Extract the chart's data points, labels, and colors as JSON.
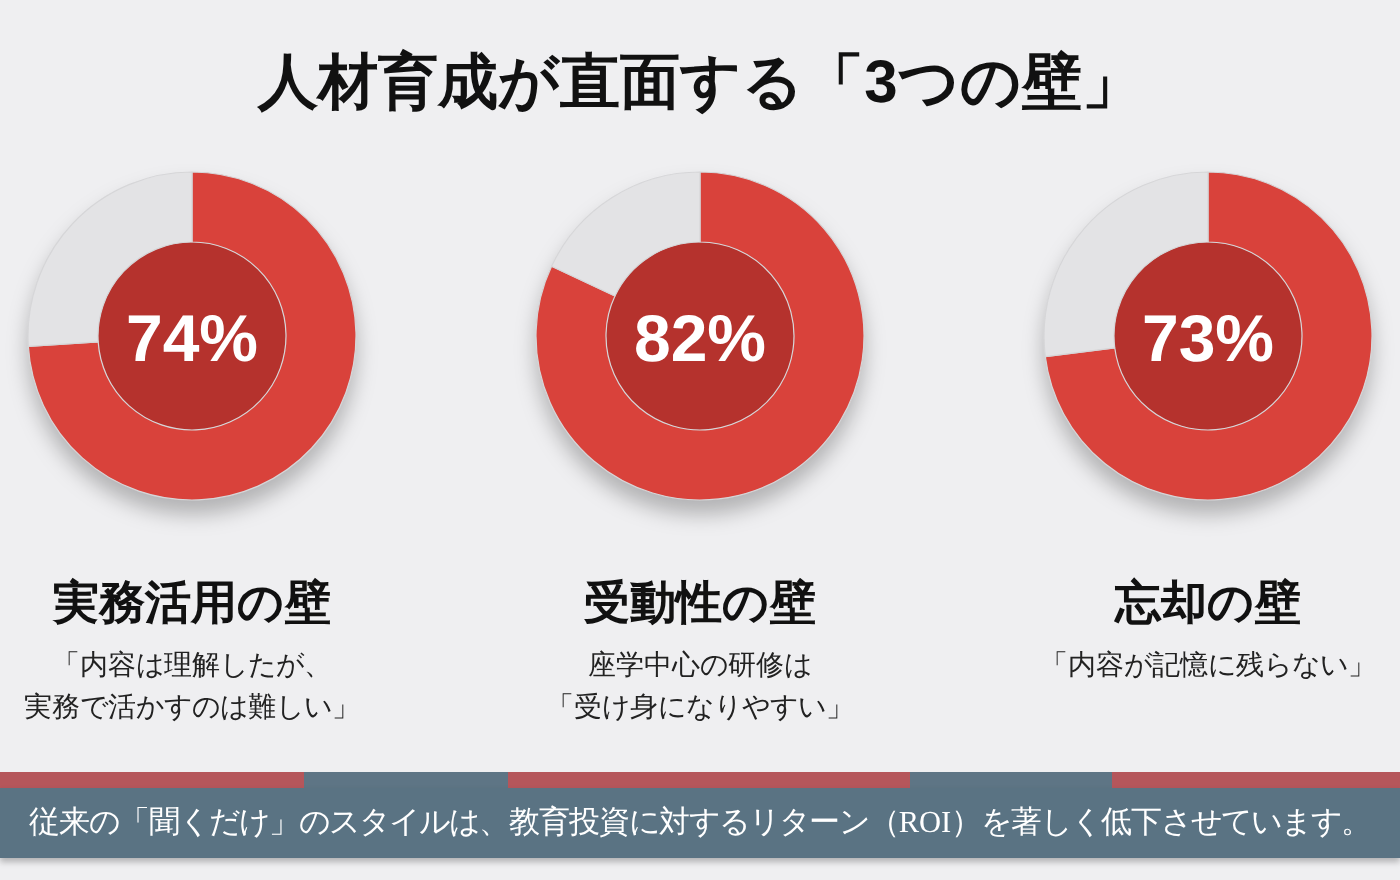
{
  "chart_data": [
    {
      "type": "other",
      "title": "人材育成が直面する「3つの壁」"
    },
    {
      "type": "donut",
      "title": "実務活用の壁",
      "subtitle": "「内容は理解したが、実務で活かすのは難しい」",
      "categories": [
        null,
        null
      ],
      "values": [
        74,
        26
      ],
      "colors": [
        "#d9423b",
        "#e3e3e5"
      ],
      "value_labels": [
        "74%",
        null
      ]
    },
    {
      "type": "donut",
      "title": "受動性の壁",
      "subtitle": "座学中心の研修は「受け身になりやすい」",
      "categories": [
        null,
        null
      ],
      "values": [
        82,
        18
      ],
      "colors": [
        "#d9423b",
        "#e3e3e5"
      ],
      "value_labels": [
        "82%",
        null
      ]
    },
    {
      "type": "donut",
      "title": "忘却の壁",
      "subtitle": "「内容が記憶に残らない」",
      "categories": [
        null,
        null
      ],
      "values": [
        73,
        27
      ],
      "colors": [
        "#d9423b",
        "#e3e3e5"
      ],
      "value_labels": [
        "73%",
        null
      ]
    },
    {
      "type": "other",
      "annotations": [
        "従来の「聞くだけ」のスタイルは、教育投資に対するリターン（ROI）を著しく低下させています。"
      ]
    }
  ]
}
